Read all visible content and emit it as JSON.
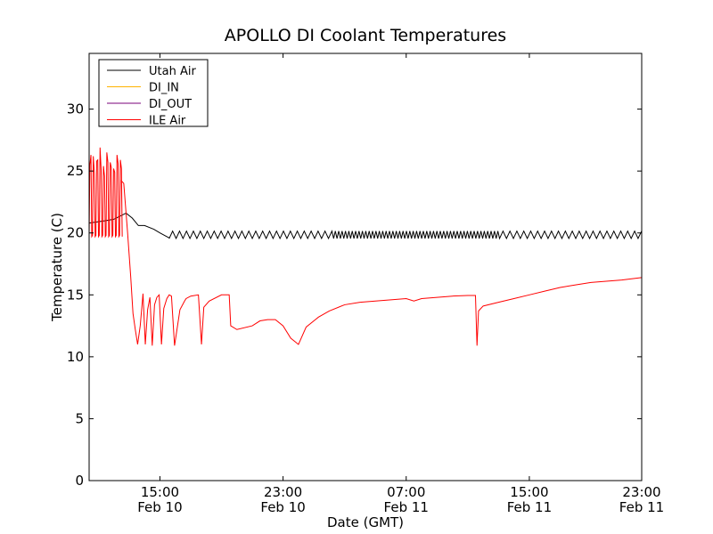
{
  "chart_data": {
    "type": "line",
    "title": "APOLLO DI Coolant Temperatures",
    "xlabel": "Date (GMT)",
    "ylabel": "Temperature (C)",
    "x_unit": "hours since Feb 10 00:00 GMT",
    "xlim": [
      10.4,
      46.3
    ],
    "ylim": [
      0,
      34.5
    ],
    "yticks": [
      0,
      5,
      10,
      15,
      20,
      25,
      30
    ],
    "xticks": [
      {
        "value": 15,
        "line1": "15:00",
        "line2": "Feb 10"
      },
      {
        "value": 23,
        "line1": "23:00",
        "line2": "Feb 10"
      },
      {
        "value": 31,
        "line1": "07:00",
        "line2": "Feb 11"
      },
      {
        "value": 39,
        "line1": "15:00",
        "line2": "Feb 11"
      },
      {
        "value": 47,
        "line1": "23:00",
        "line2": "Feb 11"
      }
    ],
    "legend_position": "top-left",
    "series": [
      {
        "name": "Utah Air",
        "color": "#000000",
        "description": "Oscillates ~19.5-20.2 C from ~13:30 onward; ~20.5-21.5 C before",
        "x": [
          10.4,
          11.5,
          12.0,
          12.8,
          13.2,
          13.6,
          14.0,
          14.6,
          15.0,
          15.6,
          46.3
        ],
        "y": [
          20.8,
          21.0,
          21.1,
          21.6,
          21.2,
          20.6,
          20.6,
          20.3,
          20.0,
          19.6,
          19.8
        ]
      },
      {
        "name": "DI_IN",
        "color": "#ffb300",
        "x": [],
        "y": []
      },
      {
        "name": "DI_OUT",
        "color": "#7a007a",
        "x": [],
        "y": []
      },
      {
        "name": "ILE Air",
        "color": "#ff0000",
        "description": "Rapid 19.6-27 C spikes until ~12:30, then drop to ~11 C, sawtooth recovery, gradual rise to ~16.4 C",
        "x": [
          10.4,
          12.5,
          12.65,
          12.9,
          13.1,
          13.25,
          13.4,
          13.55,
          13.72,
          13.9,
          14.05,
          14.2,
          14.35,
          14.5,
          14.65,
          14.8,
          14.95,
          15.1,
          15.25,
          15.45,
          15.6,
          15.75,
          15.95,
          16.3,
          16.6,
          16.7,
          17.0,
          17.5,
          17.7,
          17.85,
          18.2,
          19.0,
          19.5,
          19.6,
          20.0,
          21.0,
          21.5,
          22.0,
          22.5,
          23.0,
          23.5,
          24.0,
          24.5,
          25.1,
          25.3,
          26.0,
          27.0,
          28.0,
          29.0,
          30.0,
          31.0,
          31.5,
          32.0,
          33.0,
          34.0,
          35.0,
          35.5,
          35.6,
          35.7,
          36.0,
          37.0,
          38.0,
          39.0,
          40.0,
          41.0,
          42.0,
          43.0,
          44.0,
          45.0,
          46.3
        ],
        "y": [
          20.0,
          24.2,
          24.0,
          20.0,
          16.5,
          13.5,
          12.2,
          11.0,
          12.5,
          15.1,
          11.0,
          13.8,
          14.8,
          10.9,
          14.2,
          14.8,
          15.0,
          11.0,
          13.9,
          14.7,
          15.0,
          14.9,
          10.9,
          13.8,
          14.5,
          14.7,
          14.9,
          15.0,
          11.0,
          14.0,
          14.5,
          15.0,
          15.0,
          12.5,
          12.2,
          12.5,
          12.9,
          13.0,
          13.0,
          12.5,
          11.5,
          11.0,
          12.4,
          13.0,
          13.2,
          13.7,
          14.2,
          14.4,
          14.5,
          14.6,
          14.7,
          14.5,
          14.7,
          14.8,
          14.9,
          14.95,
          14.95,
          10.9,
          13.7,
          14.1,
          14.4,
          14.7,
          15.0,
          15.3,
          15.6,
          15.8,
          16.0,
          16.1,
          16.2,
          16.4
        ]
      }
    ]
  }
}
